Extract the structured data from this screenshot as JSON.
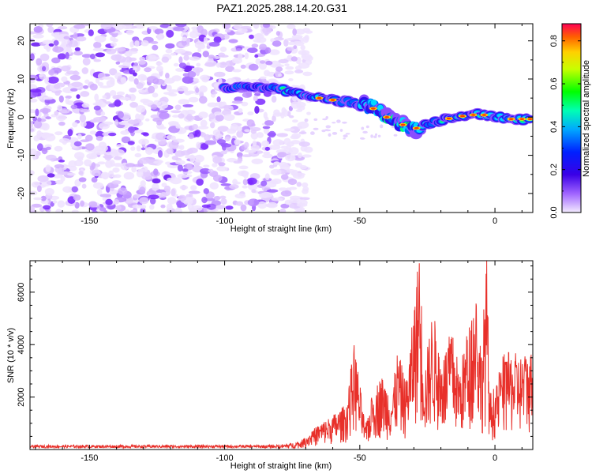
{
  "title": "PAZ1.2025.288.14.20.G31",
  "chart_data": [
    {
      "type": "heatmap",
      "name": "spectrogram",
      "xlabel": "Height of straight line (km)",
      "ylabel": "Frequency (Hz)",
      "xlim": [
        -172,
        14
      ],
      "ylim": [
        -25,
        24.5
      ],
      "xticks": [
        -150,
        -100,
        -50,
        0
      ],
      "yticks": [
        -20,
        -10,
        0,
        10,
        20
      ],
      "colorbar": {
        "label": "Normalized spectral amplitude",
        "range": [
          0.0,
          0.88
        ],
        "ticks": [
          0.0,
          0.2,
          0.4,
          0.6,
          0.8
        ]
      },
      "signal_track": [
        {
          "x": -100,
          "f": 7.5
        },
        {
          "x": -90,
          "f": 8
        },
        {
          "x": -80,
          "f": 7.5
        },
        {
          "x": -75,
          "f": 6.5
        },
        {
          "x": -70,
          "f": 5.5
        },
        {
          "x": -65,
          "f": 5
        },
        {
          "x": -55,
          "f": 4
        },
        {
          "x": -48,
          "f": 3
        },
        {
          "x": -44,
          "f": 2
        },
        {
          "x": -38,
          "f": -1
        },
        {
          "x": -32,
          "f": -2.5
        },
        {
          "x": -28,
          "f": -3
        },
        {
          "x": -24,
          "f": -1.5
        },
        {
          "x": -18,
          "f": -0.5
        },
        {
          "x": -10,
          "f": 0.5
        },
        {
          "x": -5,
          "f": 0.7
        },
        {
          "x": 0,
          "f": 0
        },
        {
          "x": 6,
          "f": -0.5
        },
        {
          "x": 14,
          "f": -0.5
        }
      ]
    },
    {
      "type": "line",
      "name": "snr",
      "xlabel": "Height of straight line (km)",
      "ylabel": "SNR (10 * v/v)",
      "xlim": [
        -172,
        14
      ],
      "ylim": [
        0,
        7200
      ],
      "xticks": [
        -150,
        -100,
        -50,
        0
      ],
      "yticks": [
        2000,
        4000,
        6000
      ],
      "color": "#e8302a",
      "envelope": [
        {
          "x": -172,
          "v": 120
        },
        {
          "x": -80,
          "v": 150
        },
        {
          "x": -72,
          "v": 280
        },
        {
          "x": -65,
          "v": 900
        },
        {
          "x": -60,
          "v": 1200
        },
        {
          "x": -55,
          "v": 1600
        },
        {
          "x": -52,
          "v": 3800
        },
        {
          "x": -48,
          "v": 800
        },
        {
          "x": -45,
          "v": 2100
        },
        {
          "x": -42,
          "v": 2600
        },
        {
          "x": -38,
          "v": 2000
        },
        {
          "x": -36,
          "v": 3500
        },
        {
          "x": -33,
          "v": 2400
        },
        {
          "x": -31,
          "v": 4000
        },
        {
          "x": -28,
          "v": 7100
        },
        {
          "x": -26,
          "v": 2800
        },
        {
          "x": -23,
          "v": 5000
        },
        {
          "x": -20,
          "v": 3100
        },
        {
          "x": -16,
          "v": 4200
        },
        {
          "x": -13,
          "v": 2800
        },
        {
          "x": -10,
          "v": 4300
        },
        {
          "x": -7,
          "v": 5600
        },
        {
          "x": -5,
          "v": 3500
        },
        {
          "x": -3,
          "v": 6800
        },
        {
          "x": -2,
          "v": 2000
        },
        {
          "x": 0,
          "v": 2200
        },
        {
          "x": 3,
          "v": 3300
        },
        {
          "x": 6,
          "v": 3400
        },
        {
          "x": 10,
          "v": 3300
        },
        {
          "x": 14,
          "v": 3500
        }
      ]
    }
  ]
}
